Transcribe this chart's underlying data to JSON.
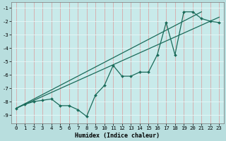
{
  "xlabel": "Humidex (Indice chaleur)",
  "bg_color": "#b8dede",
  "plot_bg_color": "#c8eaea",
  "grid_color_v": "#d8a8a8",
  "grid_color_h": "#e8f8f8",
  "line_color": "#1a6b5a",
  "xlim": [
    -0.5,
    23.5
  ],
  "ylim": [
    -9.6,
    -0.6
  ],
  "yticks": [
    -9,
    -8,
    -7,
    -6,
    -5,
    -4,
    -3,
    -2,
    -1
  ],
  "xticks": [
    0,
    1,
    2,
    3,
    4,
    5,
    6,
    7,
    8,
    9,
    10,
    11,
    12,
    13,
    14,
    15,
    16,
    17,
    18,
    19,
    20,
    21,
    22,
    23
  ],
  "data_x": [
    0,
    1,
    2,
    3,
    4,
    5,
    6,
    7,
    8,
    9,
    10,
    11,
    12,
    13,
    14,
    15,
    16,
    17,
    18,
    19,
    20,
    21,
    22,
    23
  ],
  "data_y": [
    -8.5,
    -8.2,
    -8.0,
    -7.9,
    -7.8,
    -8.3,
    -8.3,
    -8.6,
    -9.1,
    -7.5,
    -6.8,
    -5.3,
    -6.1,
    -6.1,
    -5.8,
    -5.8,
    -4.5,
    -2.1,
    -4.5,
    -1.3,
    -1.3,
    -1.8,
    -2.0,
    -2.1
  ],
  "line1_x": [
    0,
    21
  ],
  "line1_y": [
    -8.5,
    -1.3
  ],
  "line2_x": [
    0,
    23
  ],
  "line2_y": [
    -8.5,
    -1.7
  ],
  "xlabel_fontsize": 6.0,
  "tick_fontsize": 5.2
}
